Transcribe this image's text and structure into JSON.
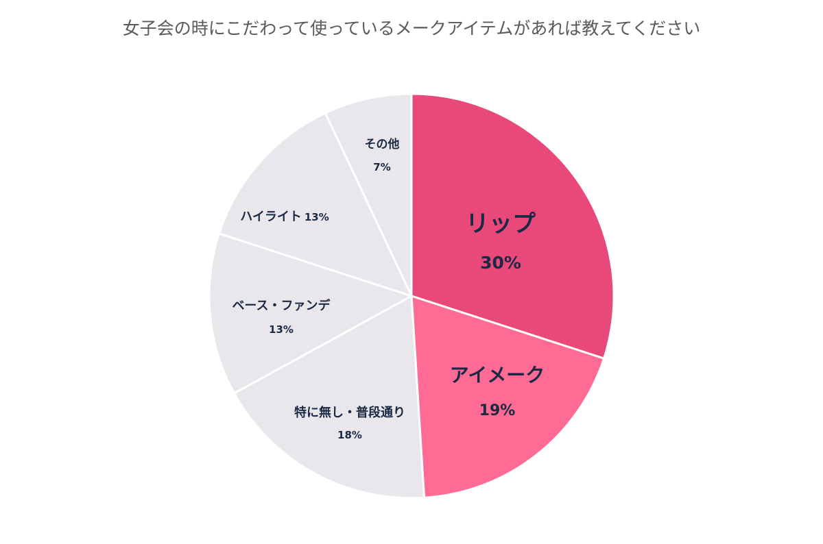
{
  "chart_data": {
    "type": "pie",
    "title": "女子会の時にこだわって使っているメークアイテムがあれば教えてください",
    "start": "top",
    "direction": "clockwise",
    "slices": [
      {
        "label": "リップ",
        "value": 30,
        "value_label": "30%",
        "color": "#E8487A"
      },
      {
        "label": "アイメーク",
        "value": 19,
        "value_label": "19%",
        "color": "#FF6B95"
      },
      {
        "label": "特に無し・普段通り",
        "value": 18,
        "value_label": "18%",
        "color": "#E9E6EC"
      },
      {
        "label": "ベース・ファンデ",
        "value": 13,
        "value_label": "13%",
        "color": "#E9E6EC"
      },
      {
        "label": "ハイライト",
        "value": 13,
        "value_label": "13%",
        "color": "#E9E6EC"
      },
      {
        "label": "その他",
        "value": 7,
        "value_label": "7%",
        "color": "#E9E6EC"
      }
    ]
  }
}
